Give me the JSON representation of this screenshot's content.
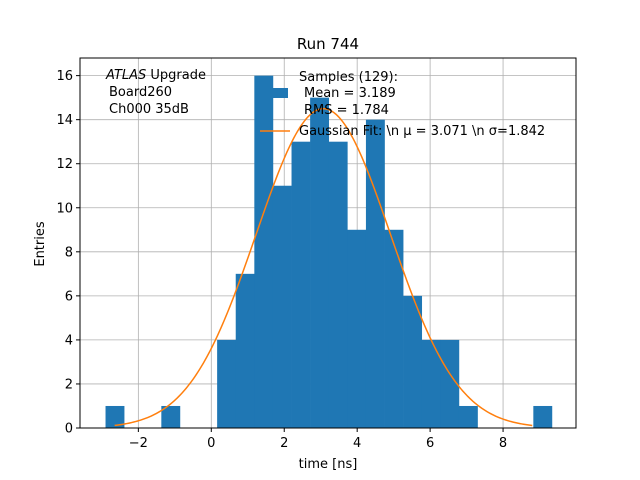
{
  "chart_data": {
    "type": "bar",
    "title": "Run 744",
    "xlabel": "time [ns]",
    "ylabel": "Entries",
    "xlim": [
      -3.6,
      10.0
    ],
    "ylim": [
      0,
      16.8
    ],
    "grid": true,
    "x_ticks": [
      -2,
      0,
      2,
      4,
      6,
      8
    ],
    "y_ticks": [
      0,
      2,
      4,
      6,
      8,
      10,
      12,
      14,
      16
    ],
    "bin_width": 0.51,
    "bins": [
      {
        "x0": -2.9,
        "count": 1
      },
      {
        "x0": -1.37,
        "count": 1
      },
      {
        "x0": 0.16,
        "count": 4
      },
      {
        "x0": 0.67,
        "count": 7
      },
      {
        "x0": 1.18,
        "count": 16
      },
      {
        "x0": 1.69,
        "count": 11
      },
      {
        "x0": 2.2,
        "count": 13
      },
      {
        "x0": 2.71,
        "count": 15
      },
      {
        "x0": 3.22,
        "count": 13
      },
      {
        "x0": 3.73,
        "count": 9
      },
      {
        "x0": 4.24,
        "count": 14
      },
      {
        "x0": 4.75,
        "count": 9
      },
      {
        "x0": 5.26,
        "count": 6
      },
      {
        "x0": 5.77,
        "count": 4
      },
      {
        "x0": 6.28,
        "count": 4
      },
      {
        "x0": 6.79,
        "count": 1
      },
      {
        "x0": 8.83,
        "count": 1
      }
    ],
    "fit": {
      "mu": 3.071,
      "sigma": 1.842,
      "scale": 14.5,
      "x_range": [
        -2.65,
        8.8
      ]
    },
    "legend": {
      "placement": "top-right",
      "samples_label": "Samples (129):",
      "mean_label": "Mean = 3.189",
      "rms_label": "RMS = 1.784",
      "fit_label": "Gaussian Fit: \\n μ = 3.071 \\n σ=1.842"
    },
    "annotation": {
      "line1_italic": "ATLAS",
      "line1_rest": " Upgrade",
      "line2": "Board260",
      "line3": "Ch000 35dB"
    },
    "colors": {
      "bars": "#1f77b4",
      "fit": "#ff7f0e",
      "grid": "#b0b0b0",
      "axes": "#000000"
    }
  }
}
